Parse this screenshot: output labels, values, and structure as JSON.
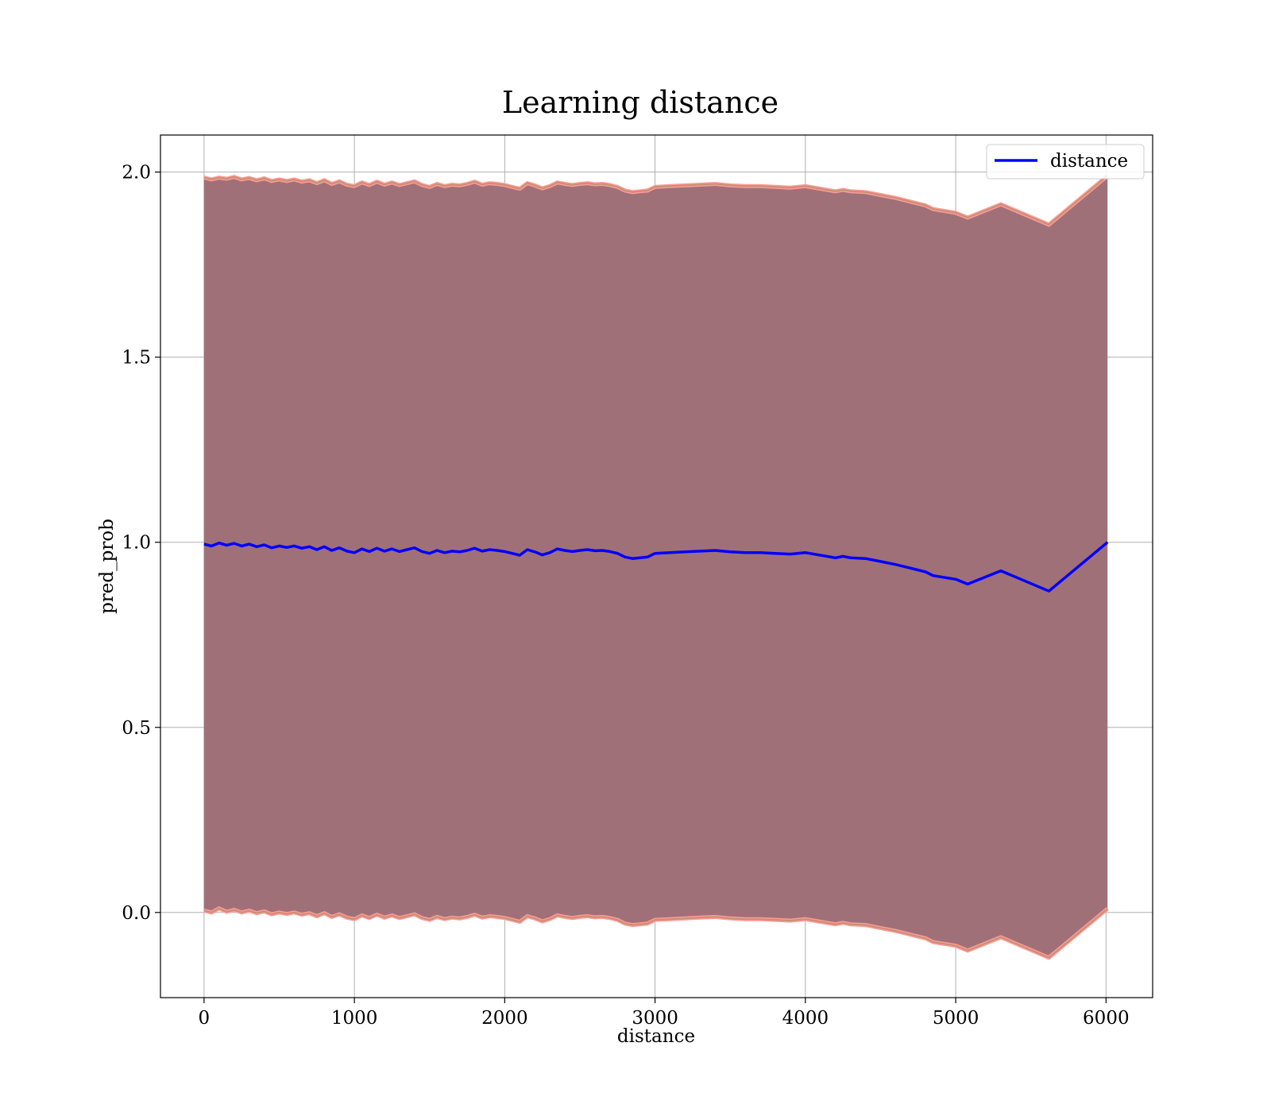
{
  "chart_data": {
    "type": "line",
    "title": "Learning distance",
    "xlabel": "distance",
    "ylabel": "pred_prob",
    "xlim": [
      -290,
      6310
    ],
    "ylim": [
      -0.23,
      2.1
    ],
    "xticks": [
      0,
      1000,
      2000,
      3000,
      4000,
      5000,
      6000
    ],
    "xtick_labels": [
      "0",
      "1000",
      "2000",
      "3000",
      "4000",
      "5000",
      "6000"
    ],
    "yticks": [
      0.0,
      0.5,
      1.0,
      1.5,
      2.0
    ],
    "ytick_labels": [
      "0.0",
      "0.5",
      "1.0",
      "1.5",
      "2.0"
    ],
    "grid": true,
    "legend": {
      "position": "top-right",
      "entries": [
        "distance"
      ]
    },
    "colors": {
      "line": "#0000ff",
      "band_fill": "#a07078",
      "band_edge_outer": "#ff9a9a",
      "band_edge_inner": "#c89070"
    },
    "series": [
      {
        "name": "distance",
        "x": [
          0,
          50,
          100,
          150,
          200,
          250,
          300,
          350,
          400,
          450,
          500,
          550,
          600,
          650,
          700,
          750,
          800,
          850,
          900,
          950,
          1000,
          1050,
          1100,
          1150,
          1200,
          1250,
          1300,
          1350,
          1400,
          1450,
          1500,
          1550,
          1600,
          1650,
          1700,
          1750,
          1800,
          1850,
          1900,
          1950,
          2000,
          2050,
          2100,
          2150,
          2200,
          2250,
          2300,
          2350,
          2400,
          2450,
          2500,
          2550,
          2600,
          2650,
          2700,
          2750,
          2800,
          2850,
          2900,
          2950,
          3000,
          3100,
          3200,
          3300,
          3400,
          3500,
          3600,
          3700,
          3800,
          3900,
          4000,
          4100,
          4200,
          4250,
          4300,
          4400,
          4500,
          4600,
          4700,
          4800,
          4850,
          5000,
          5080,
          5300,
          5620,
          6010
        ],
        "y": [
          0.995,
          0.99,
          0.998,
          0.992,
          0.997,
          0.99,
          0.995,
          0.988,
          0.993,
          0.985,
          0.99,
          0.986,
          0.99,
          0.984,
          0.988,
          0.98,
          0.988,
          0.978,
          0.985,
          0.976,
          0.972,
          0.982,
          0.975,
          0.984,
          0.976,
          0.982,
          0.975,
          0.98,
          0.985,
          0.975,
          0.97,
          0.978,
          0.972,
          0.976,
          0.974,
          0.978,
          0.984,
          0.976,
          0.98,
          0.978,
          0.975,
          0.97,
          0.965,
          0.98,
          0.974,
          0.966,
          0.972,
          0.982,
          0.978,
          0.975,
          0.978,
          0.98,
          0.977,
          0.978,
          0.975,
          0.97,
          0.96,
          0.956,
          0.958,
          0.96,
          0.97,
          0.972,
          0.974,
          0.976,
          0.978,
          0.974,
          0.972,
          0.972,
          0.97,
          0.968,
          0.972,
          0.965,
          0.958,
          0.962,
          0.958,
          0.956,
          0.948,
          0.94,
          0.93,
          0.92,
          0.91,
          0.9,
          0.887,
          0.923,
          0.868,
          1.0
        ],
        "upper": [
          1.985,
          1.98,
          1.985,
          1.982,
          1.987,
          1.98,
          1.984,
          1.978,
          1.983,
          1.976,
          1.98,
          1.976,
          1.98,
          1.974,
          1.978,
          1.97,
          1.978,
          1.968,
          1.975,
          1.966,
          1.962,
          1.972,
          1.965,
          1.974,
          1.966,
          1.972,
          1.965,
          1.97,
          1.975,
          1.965,
          1.96,
          1.968,
          1.962,
          1.966,
          1.964,
          1.968,
          1.974,
          1.966,
          1.97,
          1.968,
          1.965,
          1.96,
          1.955,
          1.97,
          1.964,
          1.956,
          1.962,
          1.972,
          1.968,
          1.965,
          1.968,
          1.97,
          1.967,
          1.968,
          1.965,
          1.96,
          1.95,
          1.946,
          1.948,
          1.95,
          1.96,
          1.962,
          1.964,
          1.966,
          1.968,
          1.964,
          1.962,
          1.962,
          1.96,
          1.958,
          1.962,
          1.955,
          1.948,
          1.952,
          1.948,
          1.946,
          1.938,
          1.93,
          1.92,
          1.91,
          1.9,
          1.89,
          1.877,
          1.913,
          1.858,
          1.99
        ],
        "lower": [
          0.005,
          0.0,
          0.011,
          0.002,
          0.007,
          0.0,
          0.005,
          -0.002,
          0.003,
          -0.005,
          0.0,
          -0.004,
          0.0,
          -0.006,
          -0.002,
          -0.01,
          -0.002,
          -0.012,
          -0.005,
          -0.014,
          -0.018,
          -0.008,
          -0.015,
          -0.006,
          -0.014,
          -0.008,
          -0.015,
          -0.01,
          -0.005,
          -0.015,
          -0.02,
          -0.012,
          -0.018,
          -0.014,
          -0.016,
          -0.012,
          -0.006,
          -0.014,
          -0.01,
          -0.012,
          -0.015,
          -0.02,
          -0.025,
          -0.01,
          -0.016,
          -0.024,
          -0.018,
          -0.008,
          -0.012,
          -0.015,
          -0.012,
          -0.01,
          -0.013,
          -0.012,
          -0.015,
          -0.02,
          -0.03,
          -0.034,
          -0.032,
          -0.03,
          -0.02,
          -0.018,
          -0.016,
          -0.014,
          -0.012,
          -0.016,
          -0.018,
          -0.018,
          -0.02,
          -0.022,
          -0.018,
          -0.025,
          -0.032,
          -0.028,
          -0.032,
          -0.034,
          -0.042,
          -0.05,
          -0.06,
          -0.07,
          -0.08,
          -0.09,
          -0.103,
          -0.067,
          -0.122,
          0.01
        ]
      }
    ]
  }
}
